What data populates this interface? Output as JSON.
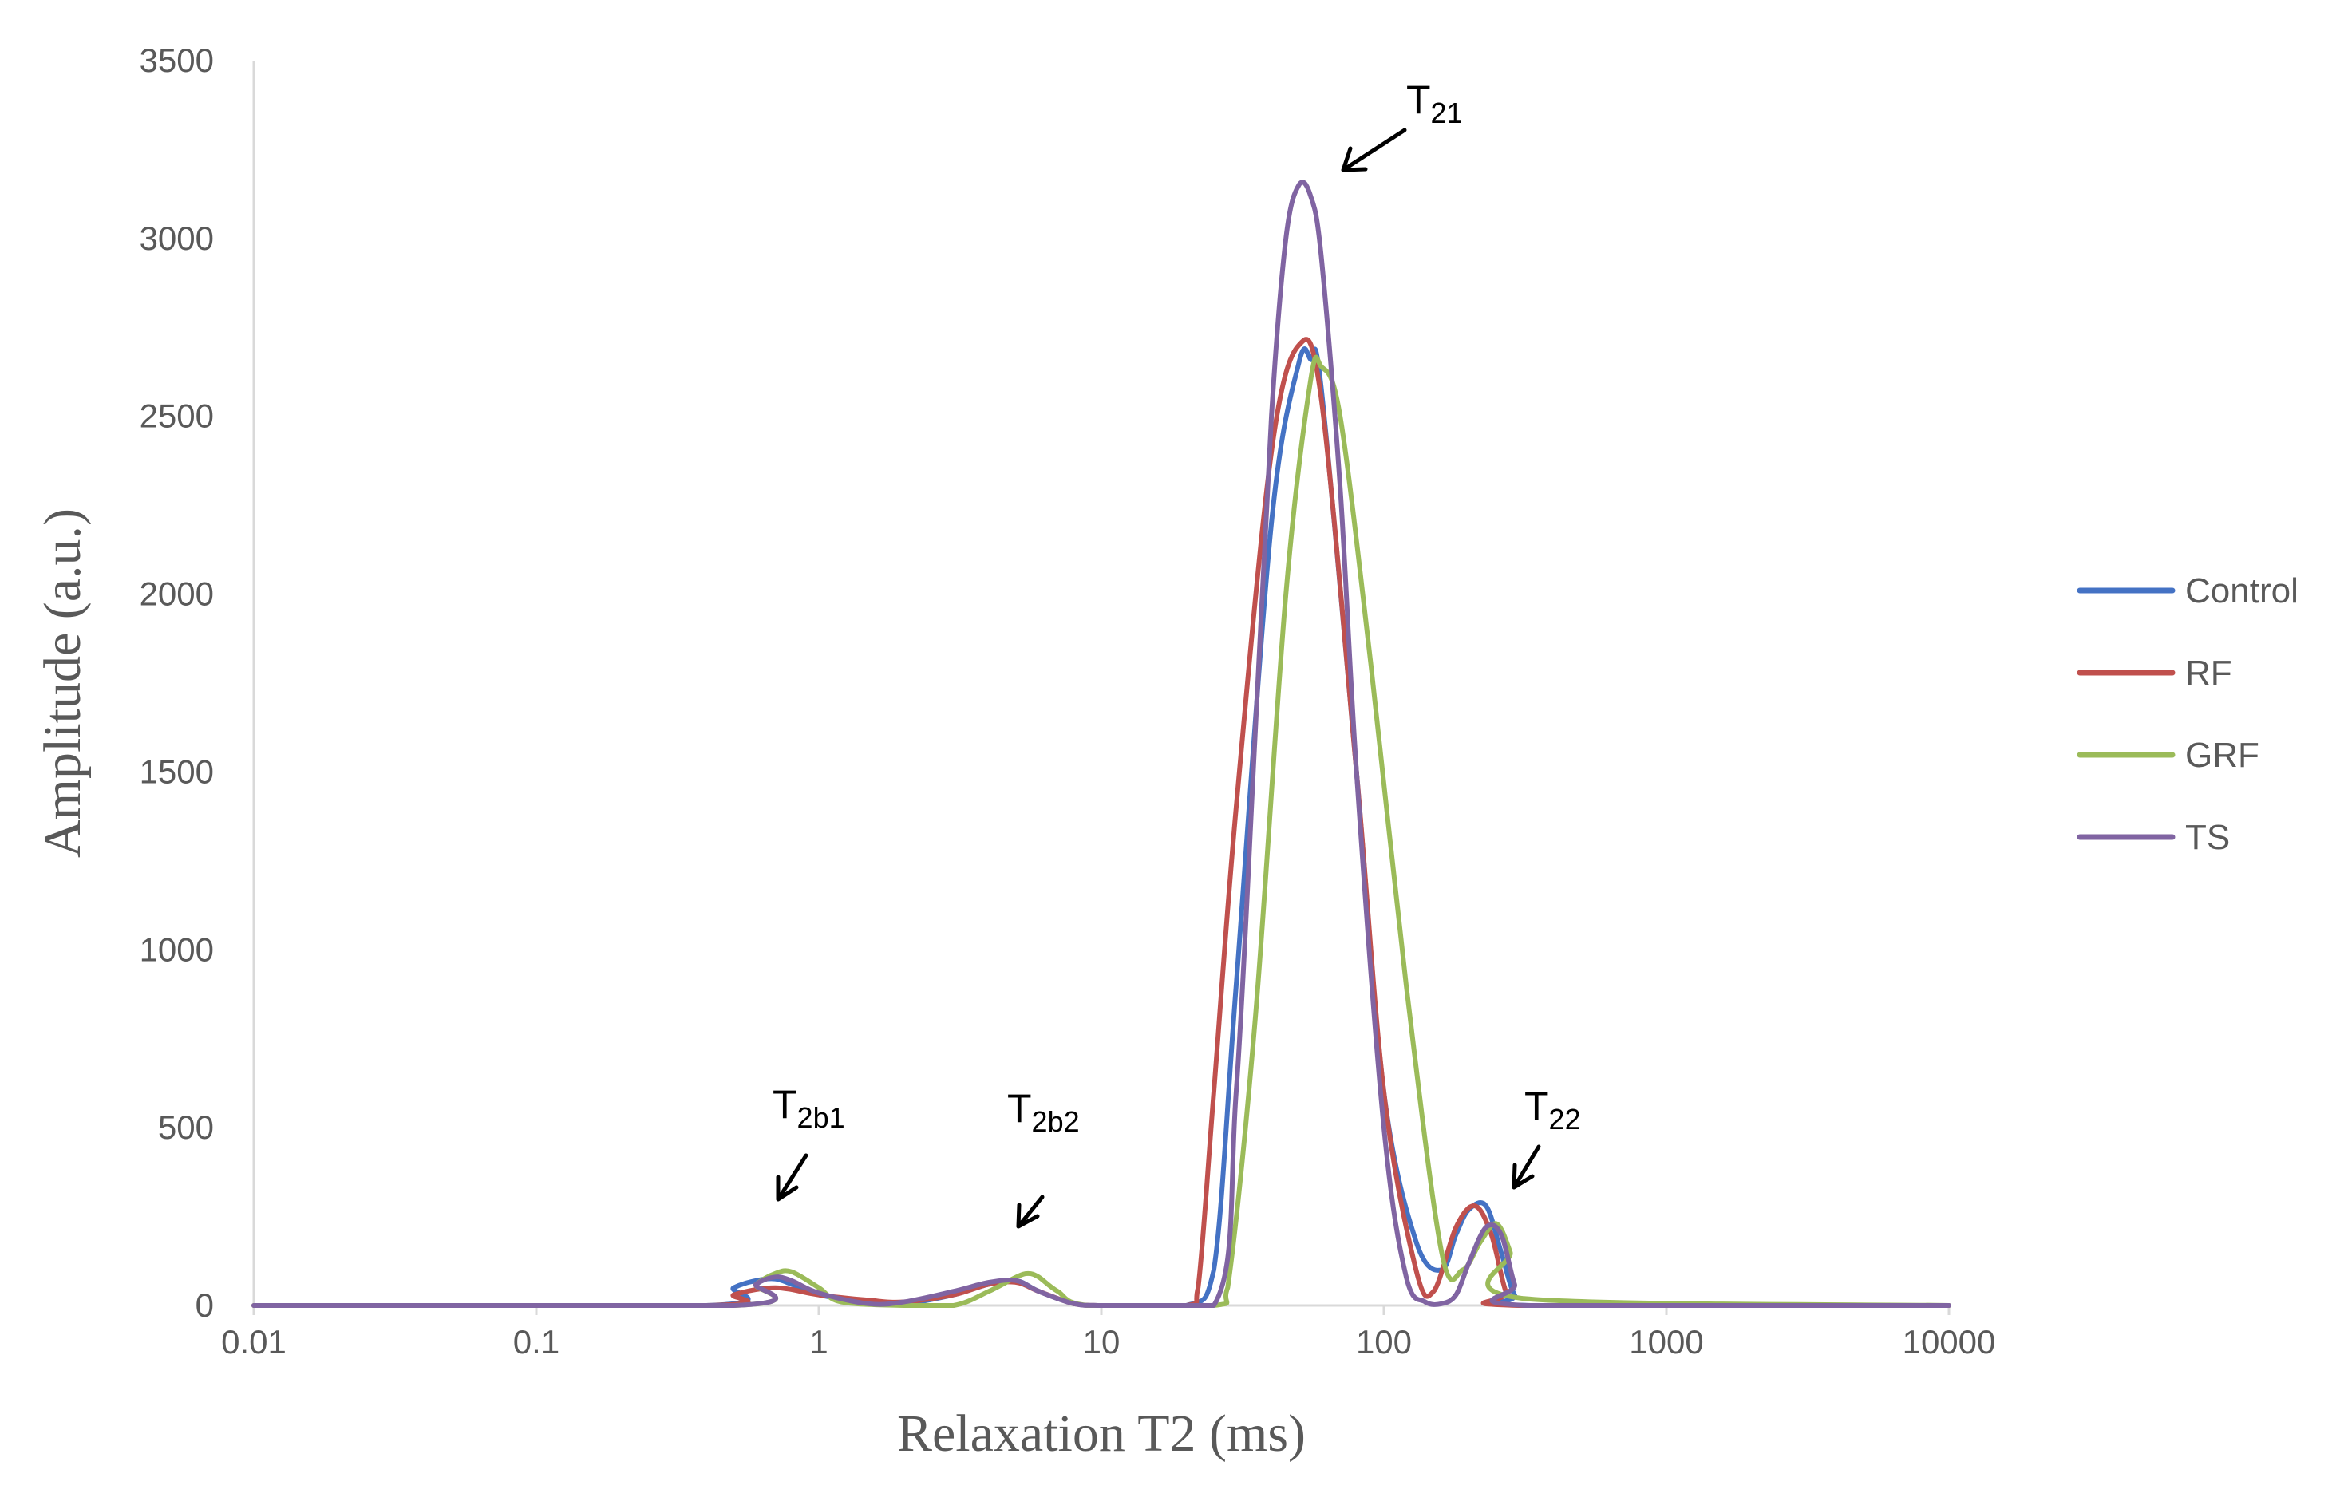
{
  "chart_data": {
    "type": "line",
    "title": "",
    "xlabel": "Relaxation T2 (ms)",
    "ylabel": "Amplitude (a.u.)",
    "x_scale": "log",
    "xlim": [
      0.01,
      10000
    ],
    "ylim": [
      0,
      3500
    ],
    "x_ticks": [
      "0.01",
      "0.1",
      "1",
      "10",
      "100",
      "1000",
      "10000"
    ],
    "y_ticks": [
      "0",
      "500",
      "1000",
      "1500",
      "2000",
      "2500",
      "3000",
      "3500"
    ],
    "grid": false,
    "legend_position": "right",
    "series": [
      {
        "name": "Control",
        "color": "#4472C4",
        "x": [
          0.01,
          0.4,
          0.5,
          0.6,
          0.7,
          0.8,
          1.0,
          1.5,
          2.0,
          3.0,
          4.0,
          5.0,
          6.0,
          8.0,
          10,
          20,
          25,
          30,
          40,
          50,
          55,
          60,
          80,
          100,
          130,
          160,
          180,
          200,
          230,
          260,
          290,
          330,
          10000
        ],
        "y": [
          0,
          0,
          50,
          70,
          75,
          60,
          30,
          10,
          5,
          30,
          60,
          70,
          40,
          5,
          0,
          0,
          100,
          900,
          2200,
          2650,
          2660,
          2580,
          1500,
          600,
          180,
          100,
          200,
          270,
          280,
          150,
          30,
          0,
          0
        ]
      },
      {
        "name": "RF",
        "color": "#C0504D",
        "x": [
          0.01,
          0.4,
          0.5,
          0.6,
          0.7,
          0.8,
          1.0,
          1.5,
          2.0,
          3.0,
          4.0,
          5.0,
          6.0,
          8.0,
          10,
          20,
          22,
          25,
          30,
          40,
          50,
          60,
          80,
          100,
          130,
          150,
          180,
          210,
          240,
          270,
          300,
          10000
        ],
        "y": [
          0,
          0,
          30,
          45,
          50,
          45,
          30,
          15,
          10,
          30,
          60,
          65,
          40,
          5,
          0,
          0,
          50,
          600,
          1400,
          2400,
          2700,
          2550,
          1500,
          600,
          100,
          40,
          220,
          280,
          200,
          40,
          0,
          0
        ]
      },
      {
        "name": "GRF",
        "color": "#9BBB59",
        "x": [
          0.01,
          0.5,
          0.6,
          0.7,
          0.8,
          1.0,
          1.2,
          2.0,
          3.0,
          4.0,
          5.0,
          5.5,
          6.0,
          7.0,
          9.0,
          25,
          28,
          35,
          45,
          55,
          60,
          70,
          90,
          120,
          160,
          190,
          220,
          250,
          280,
          310,
          10000
        ],
        "y": [
          0,
          0,
          60,
          90,
          95,
          50,
          10,
          0,
          0,
          40,
          80,
          90,
          80,
          40,
          0,
          0,
          50,
          800,
          2000,
          2600,
          2640,
          2500,
          1800,
          900,
          150,
          100,
          180,
          230,
          150,
          20,
          0
        ]
      },
      {
        "name": "TS",
        "color": "#8064A2",
        "x": [
          0.01,
          0.5,
          0.6,
          0.7,
          0.8,
          1.0,
          1.5,
          2.0,
          3.0,
          4.0,
          5.0,
          6.0,
          8.0,
          10,
          25,
          30,
          35,
          40,
          45,
          50,
          55,
          60,
          70,
          80,
          100,
          120,
          140,
          160,
          180,
          200,
          230,
          260,
          290,
          320,
          10000
        ],
        "y": [
          0,
          0,
          60,
          80,
          70,
          35,
          5,
          10,
          40,
          65,
          70,
          40,
          5,
          0,
          0,
          600,
          1600,
          2500,
          3000,
          3150,
          3120,
          2950,
          2300,
          1500,
          500,
          80,
          10,
          5,
          30,
          120,
          220,
          200,
          60,
          0,
          0
        ]
      }
    ],
    "annotations": [
      {
        "main": "T",
        "sub": "21"
      },
      {
        "main": "T",
        "sub": "2b1"
      },
      {
        "main": "T",
        "sub": "2b2"
      },
      {
        "main": "T",
        "sub": "22"
      }
    ]
  }
}
